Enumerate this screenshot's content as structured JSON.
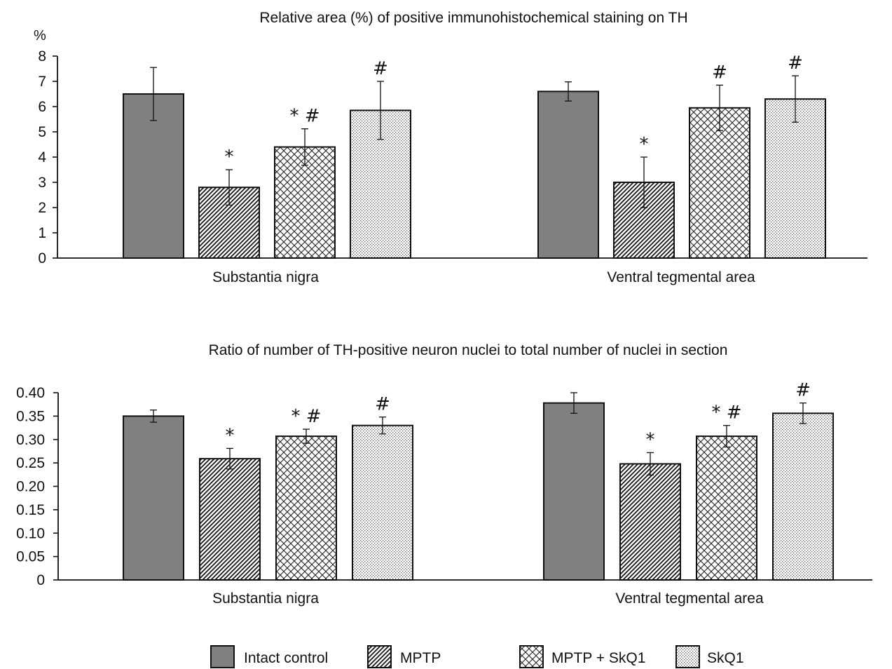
{
  "chart_data": [
    {
      "type": "bar",
      "title": "Relative area (%) of positive immunohistochemical staining on TH",
      "ylabel": "%",
      "ylim": [
        0,
        8
      ],
      "yticks": [
        "0",
        "1",
        "2",
        "3",
        "4",
        "5",
        "6",
        "7",
        "8"
      ],
      "categories": [
        "Substantia nigra",
        "Ventral tegmental area"
      ],
      "series": [
        {
          "name": "Intact control",
          "values": [
            6.5,
            6.6
          ],
          "errors": [
            1.05,
            0.38
          ],
          "marks": [
            "",
            ""
          ]
        },
        {
          "name": "MPTP",
          "values": [
            2.8,
            3.0
          ],
          "errors": [
            0.7,
            1.0
          ],
          "marks": [
            "*",
            "*"
          ]
        },
        {
          "name": "MPTP + SkQ1",
          "values": [
            4.4,
            5.95
          ],
          "errors": [
            0.72,
            0.9
          ],
          "marks": [
            "* #",
            "#"
          ]
        },
        {
          "name": "SkQ1",
          "values": [
            5.85,
            6.3
          ],
          "errors": [
            1.15,
            0.92
          ],
          "marks": [
            "#",
            "#"
          ]
        }
      ]
    },
    {
      "type": "bar",
      "title": "Ratio of number of TH-positive neuron nuclei to total number of nuclei in section",
      "ylabel": "",
      "ylim": [
        0,
        0.4
      ],
      "yticks": [
        "0",
        "0.05",
        "0.10",
        "0.15",
        "0.20",
        "0.25",
        "0.30",
        "0.35",
        "0.40"
      ],
      "categories": [
        "Substantia nigra",
        "Ventral tegmental area"
      ],
      "series": [
        {
          "name": "Intact control",
          "values": [
            0.35,
            0.378
          ],
          "errors": [
            0.013,
            0.022
          ],
          "marks": [
            "",
            ""
          ]
        },
        {
          "name": "MPTP",
          "values": [
            0.259,
            0.248
          ],
          "errors": [
            0.022,
            0.024
          ],
          "marks": [
            "*",
            "*"
          ]
        },
        {
          "name": "MPTP + SkQ1",
          "values": [
            0.307,
            0.307
          ],
          "errors": [
            0.015,
            0.023
          ],
          "marks": [
            "* #",
            "* #"
          ]
        },
        {
          "name": "SkQ1",
          "values": [
            0.33,
            0.356
          ],
          "errors": [
            0.018,
            0.022
          ],
          "marks": [
            "#",
            "#"
          ]
        }
      ]
    }
  ],
  "legend": {
    "items": [
      {
        "label": "Intact control",
        "pattern": "solid"
      },
      {
        "label": "MPTP",
        "pattern": "hatch"
      },
      {
        "label": "MPTP + SkQ1",
        "pattern": "crosshatch"
      },
      {
        "label": "SkQ1",
        "pattern": "dots"
      }
    ]
  },
  "colors": {
    "bar_solid": "#808080",
    "bar_outline": "#111111",
    "axis": "#111111"
  }
}
